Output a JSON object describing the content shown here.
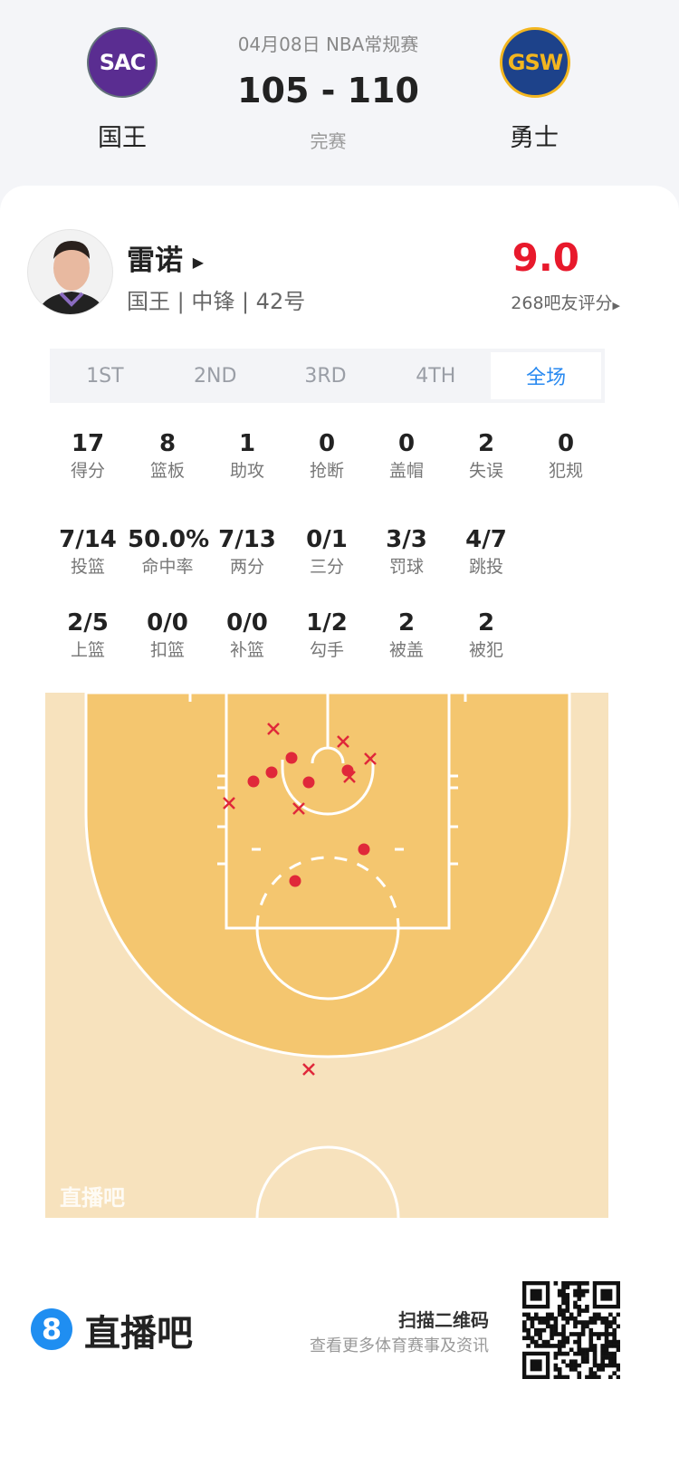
{
  "header": {
    "date_league": "04月08日 NBA常规赛",
    "score": "105 - 110",
    "status": "完赛",
    "home": {
      "abbr": "SAC",
      "name": "国王",
      "color": "#5a2d91"
    },
    "away": {
      "abbr": "GSW",
      "name": "勇士",
      "color": "#1d428a",
      "accent": "#f3b61f"
    }
  },
  "player": {
    "name": "雷诺",
    "info": "国王 | 中锋 | 42号",
    "rating": "9.0",
    "rating_label": "268吧友评分",
    "rating_color": "#e8192c"
  },
  "tabs": [
    {
      "label": "1ST"
    },
    {
      "label": "2ND"
    },
    {
      "label": "3RD"
    },
    {
      "label": "4TH"
    },
    {
      "label": "全场",
      "active": true
    }
  ],
  "stats_rows": [
    [
      {
        "v": "17",
        "l": "得分"
      },
      {
        "v": "8",
        "l": "篮板"
      },
      {
        "v": "1",
        "l": "助攻"
      },
      {
        "v": "0",
        "l": "抢断"
      },
      {
        "v": "0",
        "l": "盖帽"
      },
      {
        "v": "2",
        "l": "失误"
      },
      {
        "v": "0",
        "l": "犯规"
      }
    ],
    [
      {
        "v": "7/14",
        "l": "投篮"
      },
      {
        "v": "50.0%",
        "l": "命中率"
      },
      {
        "v": "7/13",
        "l": "两分"
      },
      {
        "v": "0/1",
        "l": "三分"
      },
      {
        "v": "3/3",
        "l": "罚球"
      },
      {
        "v": "4/7",
        "l": "跳投"
      }
    ],
    [
      {
        "v": "2/5",
        "l": "上篮"
      },
      {
        "v": "0/0",
        "l": "扣篮"
      },
      {
        "v": "0/0",
        "l": "补篮"
      },
      {
        "v": "1/2",
        "l": "勾手"
      },
      {
        "v": "2",
        "l": "被盖"
      },
      {
        "v": "2",
        "l": "被犯"
      }
    ]
  ],
  "shot_chart": {
    "watermark": "直播吧",
    "made": 7,
    "missed": 7,
    "shot_color": "#e0283a"
  },
  "footer": {
    "brand": "直播吧",
    "brand_badge": "8",
    "brand_color": "#1f8ef1",
    "scan_title": "扫描二维码",
    "scan_sub": "查看更多体育赛事及资讯"
  }
}
